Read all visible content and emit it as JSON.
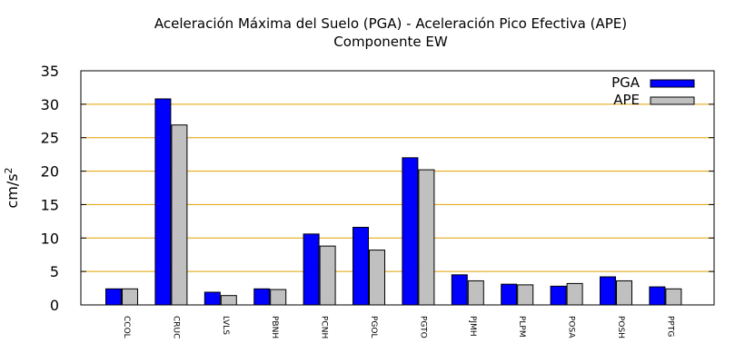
{
  "chart_data": {
    "type": "bar",
    "title": "Aceleración Máxima del Suelo (PGA) -  Aceleración Pico Efectiva (APE)",
    "subtitle": "Componente EW",
    "xlabel": "",
    "ylabel": "cm/s",
    "ylabel_sup": "2",
    "ylim": [
      0,
      35
    ],
    "yticks": [
      0,
      5,
      10,
      15,
      20,
      25,
      30,
      35
    ],
    "grid": true,
    "legend_position": "top-right",
    "categories": [
      "CCOL",
      "CRUC",
      "LVLS",
      "PBNH",
      "PCNH",
      "PGOL",
      "PGTO",
      "PJMH",
      "PLPM",
      "POSA",
      "POSH",
      "PPTG"
    ],
    "series": [
      {
        "name": "PGA",
        "color": "#0000ff",
        "values": [
          2.4,
          30.8,
          1.9,
          2.4,
          10.6,
          11.6,
          22.0,
          4.5,
          3.1,
          2.8,
          4.2,
          2.7
        ]
      },
      {
        "name": "APE",
        "color": "#c0c0c0",
        "values": [
          2.4,
          26.9,
          1.4,
          2.3,
          8.8,
          8.2,
          20.2,
          3.6,
          3.0,
          3.2,
          3.6,
          2.4
        ]
      }
    ],
    "grid_color": "#e0a000"
  }
}
